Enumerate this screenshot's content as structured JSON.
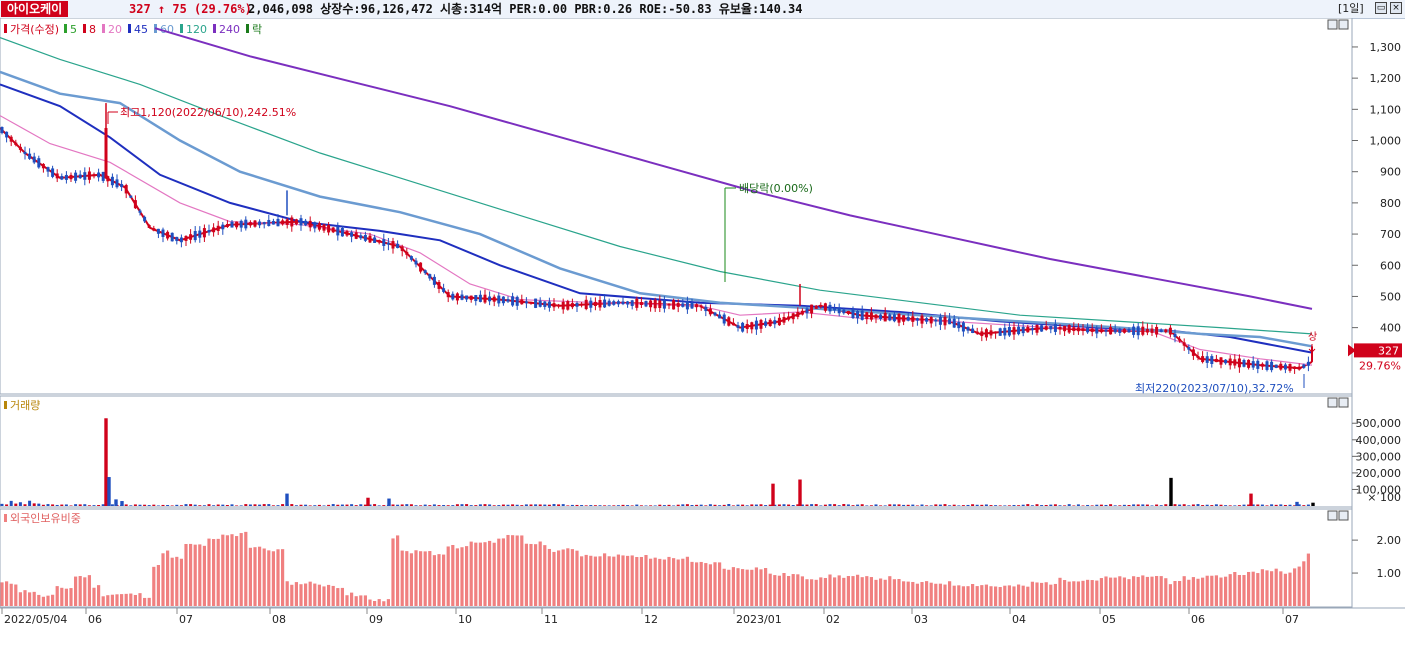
{
  "header": {
    "ticker_name": "아이오케이",
    "price_change": "327 ↑ 75 (29.76%)",
    "stats": "2,046,098 상장수:96,126,472 시총:314억 PER:0.00 PBR:0.26 ROE:-50.83 유보율:140.34",
    "period": "[1일]"
  },
  "chart_data": [
    {
      "type": "candlestick",
      "legend": [
        {
          "label": "가격(수정)",
          "color": "#d0021b"
        },
        {
          "label": "5",
          "color": "#2ca02c"
        },
        {
          "label": "8",
          "color": "#d0021b"
        },
        {
          "label": "20",
          "color": "#e377c2"
        },
        {
          "label": "45",
          "color": "#1f2fbf"
        },
        {
          "label": "60",
          "color": "#6b9bd1"
        },
        {
          "label": "120",
          "color": "#2aa48c"
        },
        {
          "label": "240",
          "color": "#7b2fbf"
        },
        {
          "label": "락",
          "color": "#1a7a1a"
        }
      ],
      "y_ticks": [
        400,
        500,
        600,
        700,
        800,
        900,
        1000,
        1100,
        1200,
        1300
      ],
      "y_tick_labels": [
        "400",
        "500",
        "600",
        "700",
        "800",
        "900",
        "1,000",
        "1,100",
        "1,200",
        "1,300"
      ],
      "ylim": [
        200,
        1380
      ],
      "annotations": {
        "high": "최고1,120(2022/06/10),242.51%",
        "low": "최저220(2023/07/10),32.72%",
        "dividend": "배당락(0.00%)",
        "limit_up": "상"
      },
      "current_price_label": "327",
      "current_change_label": "29.76%",
      "ma_series": [
        {
          "name": "8",
          "color": "#d0021b",
          "points": [
            [
              0,
              1040
            ],
            [
              25,
              960
            ],
            [
              60,
              880
            ],
            [
              100,
              890
            ],
            [
              125,
              850
            ],
            [
              150,
              720
            ],
            [
              180,
              680
            ],
            [
              230,
              730
            ],
            [
              300,
              740
            ],
            [
              350,
              700
            ],
            [
              400,
              660
            ],
            [
              450,
              500
            ],
            [
              500,
              490
            ],
            [
              560,
              470
            ],
            [
              620,
              480
            ],
            [
              700,
              470
            ],
            [
              740,
              400
            ],
            [
              780,
              420
            ],
            [
              820,
              470
            ],
            [
              860,
              440
            ],
            [
              900,
              430
            ],
            [
              950,
              420
            ],
            [
              980,
              380
            ],
            [
              1050,
              400
            ],
            [
              1100,
              390
            ],
            [
              1170,
              390
            ],
            [
              1200,
              300
            ],
            [
              1260,
              280
            ],
            [
              1300,
              270
            ],
            [
              1312,
              290
            ]
          ]
        },
        {
          "name": "20",
          "color": "#e377c2",
          "points": [
            [
              0,
              1080
            ],
            [
              50,
              990
            ],
            [
              110,
              930
            ],
            [
              180,
              800
            ],
            [
              230,
              740
            ],
            [
              300,
              730
            ],
            [
              370,
              700
            ],
            [
              420,
              640
            ],
            [
              470,
              540
            ],
            [
              520,
              490
            ],
            [
              600,
              480
            ],
            [
              700,
              470
            ],
            [
              740,
              440
            ],
            [
              800,
              450
            ],
            [
              860,
              430
            ],
            [
              950,
              420
            ],
            [
              1050,
              400
            ],
            [
              1150,
              390
            ],
            [
              1200,
              330
            ],
            [
              1260,
              300
            ],
            [
              1312,
              280
            ]
          ]
        },
        {
          "name": "45",
          "color": "#1f2fbf",
          "points": [
            [
              0,
              1180
            ],
            [
              60,
              1110
            ],
            [
              110,
              1010
            ],
            [
              160,
              890
            ],
            [
              230,
              800
            ],
            [
              300,
              740
            ],
            [
              380,
              710
            ],
            [
              440,
              680
            ],
            [
              500,
              600
            ],
            [
              580,
              510
            ],
            [
              700,
              480
            ],
            [
              800,
              470
            ],
            [
              900,
              450
            ],
            [
              1000,
              420
            ],
            [
              1100,
              400
            ],
            [
              1170,
              390
            ],
            [
              1230,
              370
            ],
            [
              1312,
              320
            ]
          ]
        },
        {
          "name": "60",
          "color": "#6b9bd1",
          "points": [
            [
              0,
              1220
            ],
            [
              60,
              1150
            ],
            [
              120,
              1120
            ],
            [
              180,
              1000
            ],
            [
              240,
              900
            ],
            [
              320,
              820
            ],
            [
              400,
              770
            ],
            [
              480,
              700
            ],
            [
              560,
              590
            ],
            [
              640,
              510
            ],
            [
              720,
              480
            ],
            [
              820,
              460
            ],
            [
              920,
              440
            ],
            [
              1020,
              420
            ],
            [
              1120,
              400
            ],
            [
              1200,
              380
            ],
            [
              1260,
              370
            ],
            [
              1312,
              340
            ]
          ]
        },
        {
          "name": "120",
          "color": "#2aa48c",
          "points": [
            [
              0,
              1330
            ],
            [
              60,
              1260
            ],
            [
              140,
              1180
            ],
            [
              220,
              1080
            ],
            [
              320,
              960
            ],
            [
              420,
              860
            ],
            [
              520,
              760
            ],
            [
              620,
              660
            ],
            [
              720,
              580
            ],
            [
              820,
              520
            ],
            [
              920,
              480
            ],
            [
              1020,
              440
            ],
            [
              1120,
              420
            ],
            [
              1220,
              400
            ],
            [
              1312,
              380
            ]
          ]
        },
        {
          "name": "240",
          "color": "#7b2fbf",
          "points": [
            [
              155,
              1360
            ],
            [
              250,
              1270
            ],
            [
              350,
              1190
            ],
            [
              450,
              1110
            ],
            [
              550,
              1020
            ],
            [
              650,
              930
            ],
            [
              750,
              840
            ],
            [
              850,
              760
            ],
            [
              950,
              690
            ],
            [
              1050,
              620
            ],
            [
              1150,
              560
            ],
            [
              1250,
              500
            ],
            [
              1312,
              460
            ]
          ]
        }
      ]
    },
    {
      "type": "bar",
      "title": "거래량",
      "y_ticks": [
        100000,
        200000,
        300000,
        400000,
        500000
      ],
      "y_tick_labels": [
        "100,000",
        "200,000",
        "300,000",
        "400,000",
        "500,000"
      ],
      "unit_label": "× 100",
      "ylim": [
        0,
        580000
      ],
      "spikes": [
        {
          "x": 106,
          "value": 530000,
          "color": "#d0021b"
        },
        {
          "x": 109,
          "value": 175000,
          "color": "#1f4fbf"
        },
        {
          "x": 116,
          "value": 40000,
          "color": "#1f4fbf"
        },
        {
          "x": 122,
          "value": 30000,
          "color": "#1f4fbf"
        },
        {
          "x": 287,
          "value": 75000,
          "color": "#1f4fbf"
        },
        {
          "x": 368,
          "value": 50000,
          "color": "#d0021b"
        },
        {
          "x": 389,
          "value": 45000,
          "color": "#1f4fbf"
        },
        {
          "x": 773,
          "value": 135000,
          "color": "#d0021b"
        },
        {
          "x": 800,
          "value": 160000,
          "color": "#d0021b"
        },
        {
          "x": 1171,
          "value": 170000,
          "color": "#000000"
        },
        {
          "x": 1251,
          "value": 75000,
          "color": "#d0021b"
        },
        {
          "x": 1297,
          "value": 25000,
          "color": "#1f4fbf"
        },
        {
          "x": 1313,
          "value": 20000,
          "color": "#000000"
        }
      ]
    },
    {
      "type": "bar",
      "title": "외국인보유비중",
      "y_ticks": [
        1.0,
        2.0
      ],
      "y_tick_labels": [
        "1.00",
        "2.00"
      ],
      "ylim": [
        0,
        2.55
      ],
      "color": "#f08080",
      "segments": [
        [
          0,
          0.7
        ],
        [
          18,
          0.45
        ],
        [
          36,
          0.3
        ],
        [
          55,
          0.55
        ],
        [
          75,
          0.9
        ],
        [
          90,
          0.6
        ],
        [
          100,
          0.35
        ],
        [
          140,
          0.3
        ],
        [
          152,
          1.2
        ],
        [
          160,
          1.65
        ],
        [
          170,
          1.45
        ],
        [
          185,
          1.85
        ],
        [
          205,
          2.0
        ],
        [
          220,
          2.15
        ],
        [
          240,
          2.25
        ],
        [
          247,
          1.8
        ],
        [
          262,
          1.7
        ],
        [
          284,
          0.7
        ],
        [
          320,
          0.6
        ],
        [
          345,
          0.35
        ],
        [
          355,
          0.3
        ],
        [
          370,
          0.2
        ],
        [
          380,
          0.15
        ],
        [
          389,
          2.1
        ],
        [
          400,
          1.65
        ],
        [
          430,
          1.55
        ],
        [
          445,
          1.8
        ],
        [
          470,
          1.95
        ],
        [
          495,
          2.1
        ],
        [
          525,
          1.9
        ],
        [
          545,
          1.7
        ],
        [
          580,
          1.55
        ],
        [
          620,
          1.5
        ],
        [
          650,
          1.45
        ],
        [
          690,
          1.3
        ],
        [
          720,
          1.15
        ],
        [
          740,
          1.15
        ],
        [
          770,
          0.95
        ],
        [
          800,
          0.85
        ],
        [
          820,
          0.9
        ],
        [
          860,
          0.85
        ],
        [
          900,
          0.7
        ],
        [
          950,
          0.65
        ],
        [
          990,
          0.6
        ],
        [
          1030,
          0.7
        ],
        [
          1060,
          0.8
        ],
        [
          1100,
          0.85
        ],
        [
          1140,
          0.9
        ],
        [
          1170,
          0.7
        ],
        [
          1180,
          0.85
        ],
        [
          1200,
          0.9
        ],
        [
          1230,
          1.0
        ],
        [
          1260,
          1.1
        ],
        [
          1280,
          1.0
        ],
        [
          1290,
          1.2
        ],
        [
          1300,
          1.35
        ],
        [
          1308,
          1.65
        ],
        [
          1315,
          0
        ]
      ]
    }
  ],
  "x_axis_labels": [
    {
      "x": 2,
      "label": "2022/05/04"
    },
    {
      "x": 86,
      "label": "06"
    },
    {
      "x": 177,
      "label": "07"
    },
    {
      "x": 270,
      "label": "08"
    },
    {
      "x": 367,
      "label": "09"
    },
    {
      "x": 456,
      "label": "10"
    },
    {
      "x": 542,
      "label": "11"
    },
    {
      "x": 642,
      "label": "12"
    },
    {
      "x": 734,
      "label": "2023/01"
    },
    {
      "x": 824,
      "label": "02"
    },
    {
      "x": 912,
      "label": "03"
    },
    {
      "x": 1010,
      "label": "04"
    },
    {
      "x": 1100,
      "label": "05"
    },
    {
      "x": 1189,
      "label": "06"
    },
    {
      "x": 1283,
      "label": "07"
    }
  ]
}
